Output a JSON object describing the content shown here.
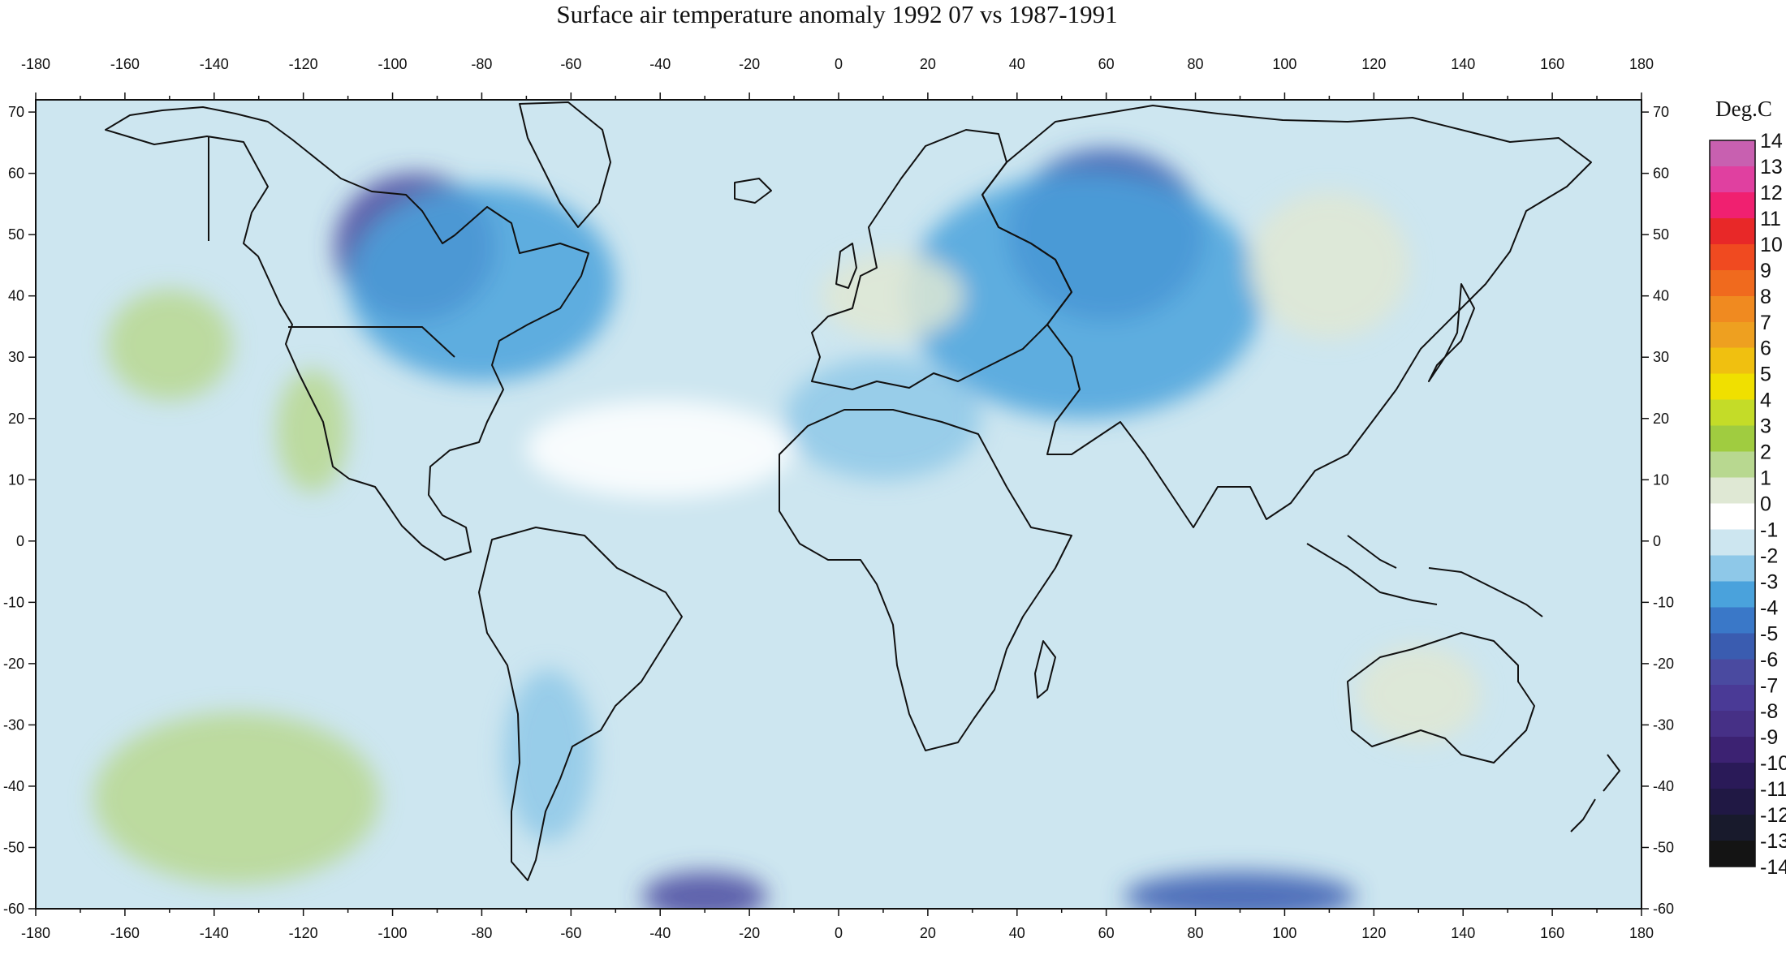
{
  "title": "Surface air temperature anomaly 1992 07 vs 1987-1991",
  "map": {
    "projection": "equirectangular",
    "lon_range": [
      -180,
      180
    ],
    "lat_range": [
      -60,
      72
    ],
    "background_anomaly": -1.2
  },
  "axes": {
    "x_ticks": [
      -180,
      -160,
      -140,
      -120,
      -100,
      -80,
      -60,
      -40,
      -20,
      0,
      20,
      40,
      60,
      80,
      100,
      120,
      140,
      160,
      180
    ],
    "y_ticks": [
      70,
      60,
      50,
      40,
      30,
      20,
      10,
      0,
      -10,
      -20,
      -30,
      -40,
      -50,
      -60
    ]
  },
  "colorbar": {
    "unit": "Deg.C",
    "levels": [
      14,
      13,
      12,
      11,
      10,
      9,
      8,
      7,
      6,
      5,
      4,
      3,
      2,
      1,
      0,
      -1,
      -2,
      -3,
      -4,
      -5,
      -6,
      -7,
      -8,
      -9,
      -10,
      -11,
      -12,
      -13,
      -14
    ],
    "colors": [
      "#c860b0",
      "#e040a0",
      "#f02070",
      "#e82828",
      "#f04a20",
      "#f06a1e",
      "#f08a20",
      "#eea020",
      "#f0c010",
      "#f0e000",
      "#c4dc28",
      "#a0cc40",
      "#b8d890",
      "#dfe8d4",
      "#ffffff",
      "#cde6f0",
      "#8ec8e8",
      "#4aa2dc",
      "#3a78c8",
      "#3a5cb0",
      "#4a4aa0",
      "#4a3a96",
      "#463086",
      "#3c2272",
      "#2a1a58",
      "#201844",
      "#181a2c",
      "#141414"
    ]
  },
  "chart_data": {
    "type": "heatmap",
    "title": "Surface air temperature anomaly 1992 07 vs 1987-1991",
    "units": "Deg.C",
    "xlim": [
      -180,
      180
    ],
    "ylim": [
      -60,
      72
    ],
    "anomaly_regions": [
      {
        "lon": -95,
        "lat": 48,
        "rlon": 18,
        "rlat": 12,
        "value": -6
      },
      {
        "lon": -80,
        "lat": 42,
        "rlon": 30,
        "rlat": 16,
        "value": -3.5
      },
      {
        "lon": 60,
        "lat": 50,
        "rlon": 22,
        "rlat": 14,
        "value": -5
      },
      {
        "lon": 55,
        "lat": 40,
        "rlon": 40,
        "rlat": 20,
        "value": -3
      },
      {
        "lon": -150,
        "lat": 32,
        "rlon": 14,
        "rlat": 9,
        "value": 2
      },
      {
        "lon": -118,
        "lat": 18,
        "rlon": 8,
        "rlat": 10,
        "value": 1.5
      },
      {
        "lon": -135,
        "lat": -42,
        "rlon": 32,
        "rlat": 14,
        "value": 1.5
      },
      {
        "lon": 110,
        "lat": 45,
        "rlon": 18,
        "rlat": 12,
        "value": 0.5
      },
      {
        "lon": 130,
        "lat": -25,
        "rlon": 14,
        "rlat": 8,
        "value": 1
      },
      {
        "lon": 12,
        "lat": 40,
        "rlon": 16,
        "rlat": 7,
        "value": 0.8
      },
      {
        "lon": -30,
        "lat": -58,
        "rlon": 14,
        "rlat": 4,
        "value": -6
      },
      {
        "lon": 90,
        "lat": -58,
        "rlon": 26,
        "rlat": 4,
        "value": -5.5
      },
      {
        "lon": -65,
        "lat": -35,
        "rlon": 10,
        "rlat": 14,
        "value": -2.5
      },
      {
        "lon": 10,
        "lat": 20,
        "rlon": 22,
        "rlat": 10,
        "value": -2
      },
      {
        "lon": -40,
        "lat": 15,
        "rlon": 30,
        "rlat": 8,
        "value": 0
      }
    ]
  }
}
